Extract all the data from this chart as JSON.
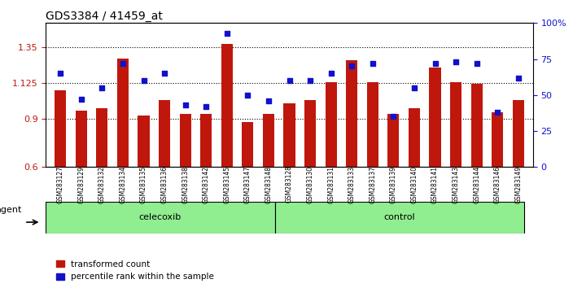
{
  "title": "GDS3384 / 41459_at",
  "samples": [
    "GSM283127",
    "GSM283129",
    "GSM283132",
    "GSM283134",
    "GSM283135",
    "GSM283136",
    "GSM283138",
    "GSM283142",
    "GSM283145",
    "GSM283147",
    "GSM283148",
    "GSM283128",
    "GSM283130",
    "GSM283131",
    "GSM283133",
    "GSM283137",
    "GSM283139",
    "GSM283140",
    "GSM283141",
    "GSM283143",
    "GSM283144",
    "GSM283146",
    "GSM283149"
  ],
  "bar_values": [
    1.08,
    0.95,
    0.97,
    1.28,
    0.92,
    1.02,
    0.93,
    0.93,
    1.37,
    0.88,
    0.93,
    1.0,
    1.02,
    1.13,
    1.27,
    1.13,
    0.93,
    0.97,
    1.22,
    1.13,
    1.12,
    0.94,
    1.02
  ],
  "percentile_values": [
    65,
    47,
    55,
    72,
    60,
    65,
    43,
    42,
    93,
    50,
    46,
    60,
    60,
    65,
    70,
    72,
    35,
    55,
    72,
    73,
    72,
    38,
    62
  ],
  "celecoxib_count": 11,
  "control_count": 12,
  "bar_color": "#C0170C",
  "percentile_color": "#1111CC",
  "ylim_left": [
    0.6,
    1.5
  ],
  "ylim_right": [
    0,
    100
  ],
  "yticks_left": [
    0.6,
    0.9,
    1.125,
    1.35
  ],
  "ytick_labels_left": [
    "0.6",
    "0.9",
    "1.125",
    "1.35"
  ],
  "yticks_right": [
    0,
    25,
    50,
    75,
    100
  ],
  "ytick_labels_right": [
    "0",
    "25",
    "50",
    "75",
    "100%"
  ],
  "celecoxib_label": "celecoxib",
  "control_label": "control",
  "agent_label": "agent",
  "legend_bar": "transformed count",
  "legend_dot": "percentile rank within the sample",
  "background_plot": "#ffffff",
  "group_bar_color": "#90EE90",
  "xtick_bg_color": "#d3d3d3"
}
